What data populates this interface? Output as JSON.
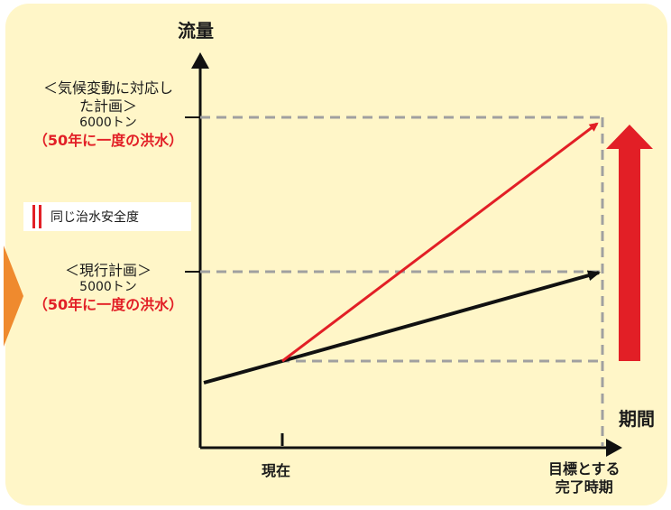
{
  "y_axis_label": "流量",
  "x_axis_label": "期間",
  "x_ticks": {
    "current": "現在",
    "target": [
      "目標とする",
      "完了時期"
    ]
  },
  "climate_plan": {
    "title_line1": "＜気候変動に対応し",
    "title_line2": "た計画＞",
    "flow": "6000トン",
    "frequency": "（50年に一度の洪水）"
  },
  "current_plan": {
    "title": "＜現行計画＞",
    "flow": "5000トン",
    "frequency": "（50年に一度の洪水）"
  },
  "legend": {
    "text": "同じ治水安全度"
  },
  "colors": {
    "panel": "#fff6c8",
    "accent_red": "#e21f26",
    "line_black": "#111111",
    "dashed_gray": "#a0a0a0",
    "prev_arrow": "#ef8a2e"
  },
  "icons": {
    "increase_arrow": "big-red-up-arrow-icon",
    "previous_step": "orange-chevron-icon"
  }
}
